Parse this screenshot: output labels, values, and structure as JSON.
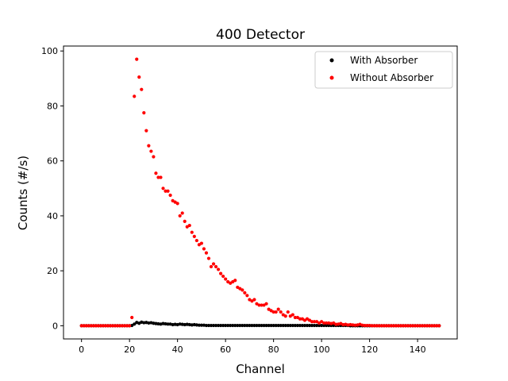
{
  "chart_data": {
    "type": "scatter",
    "title": "400 Detector",
    "xlabel": "Channel",
    "ylabel": "Counts (#/s)",
    "xlim": [
      -7.5,
      156.5
    ],
    "ylim": [
      -4.8,
      101.8
    ],
    "xticks": [
      0,
      20,
      40,
      60,
      80,
      100,
      120,
      140
    ],
    "yticks": [
      0,
      20,
      40,
      60,
      80,
      100
    ],
    "legend_position": "top-right",
    "series": [
      {
        "name": "With Absorber",
        "color": "#000000",
        "x_start": 0,
        "values": [
          0,
          0,
          0,
          0,
          0,
          0,
          0,
          0,
          0,
          0,
          0,
          0,
          0,
          0,
          0,
          0,
          0,
          0,
          0,
          0,
          0,
          0.1,
          0.6,
          1.2,
          0.9,
          1.3,
          1.1,
          1.2,
          1.0,
          1.1,
          0.9,
          0.8,
          0.7,
          0.6,
          0.8,
          0.7,
          0.6,
          0.6,
          0.4,
          0.5,
          0.4,
          0.6,
          0.5,
          0.4,
          0.5,
          0.4,
          0.3,
          0.4,
          0.3,
          0.2,
          0.2,
          0.2,
          0.1,
          0.1,
          0.1,
          0.1,
          0.1,
          0.1,
          0.1,
          0.1,
          0.1,
          0.1,
          0.1,
          0.1,
          0.1,
          0.1,
          0.1,
          0.1,
          0.1,
          0.1,
          0.1,
          0.1,
          0.1,
          0.1,
          0.1,
          0.1,
          0.1,
          0.1,
          0.1,
          0.1,
          0.1,
          0.1,
          0.1,
          0.1,
          0.1,
          0.1,
          0.1,
          0.1,
          0.1,
          0.1,
          0.1,
          0.1,
          0.1,
          0.1,
          0.1,
          0.1,
          0.1,
          0.1,
          0.1,
          0.1,
          0.1,
          0.1,
          0.1,
          0.1,
          0.1,
          0.1,
          0.1,
          0.1,
          0.1,
          0.1,
          0.1,
          0.1,
          0,
          0,
          0,
          0,
          0,
          0,
          0,
          0,
          0,
          0,
          0,
          0,
          0,
          0,
          0,
          0,
          0,
          0,
          0,
          0,
          0,
          0,
          0,
          0,
          0,
          0,
          0,
          0,
          0,
          0,
          0,
          0,
          0,
          0,
          0,
          0,
          0,
          0
        ]
      },
      {
        "name": "Without Absorber",
        "color": "#ff0000",
        "x_start": 0,
        "values": [
          0,
          0,
          0,
          0,
          0,
          0,
          0,
          0,
          0,
          0,
          0,
          0,
          0,
          0,
          0,
          0,
          0,
          0,
          0,
          0,
          0,
          3.0,
          83.5,
          97.0,
          90.5,
          86.0,
          77.5,
          71.0,
          65.5,
          63.5,
          61.5,
          55.5,
          54.0,
          54.0,
          50.0,
          49.0,
          49.0,
          47.5,
          45.5,
          45.0,
          44.5,
          40.0,
          41.0,
          38.0,
          36.0,
          36.5,
          34.0,
          32.5,
          31.0,
          29.5,
          30.0,
          28.0,
          26.5,
          24.5,
          21.5,
          22.5,
          21.5,
          20.5,
          19.0,
          18.0,
          17.0,
          16.0,
          15.5,
          16.0,
          16.5,
          14.0,
          13.5,
          13.0,
          12.0,
          11.0,
          9.5,
          9.0,
          9.5,
          8.0,
          7.5,
          7.5,
          7.5,
          8.0,
          6.0,
          5.5,
          5.0,
          5.0,
          6.0,
          5.0,
          4.0,
          3.5,
          5.0,
          3.5,
          4.0,
          3.0,
          3.0,
          2.5,
          2.5,
          2.0,
          2.5,
          2.0,
          1.5,
          1.5,
          1.5,
          1.0,
          1.5,
          1.0,
          1.0,
          1.0,
          0.8,
          1.0,
          0.5,
          0.6,
          0.8,
          0.4,
          0.5,
          0.3,
          0.4,
          0.3,
          0.2,
          0.3,
          0.5,
          0.2,
          0.1,
          0.1,
          0.1,
          0,
          0,
          0,
          0,
          0,
          0,
          0,
          0,
          0,
          0,
          0,
          0,
          0,
          0,
          0,
          0,
          0,
          0,
          0,
          0,
          0,
          0,
          0,
          0,
          0,
          0,
          0,
          0,
          0
        ]
      }
    ]
  }
}
